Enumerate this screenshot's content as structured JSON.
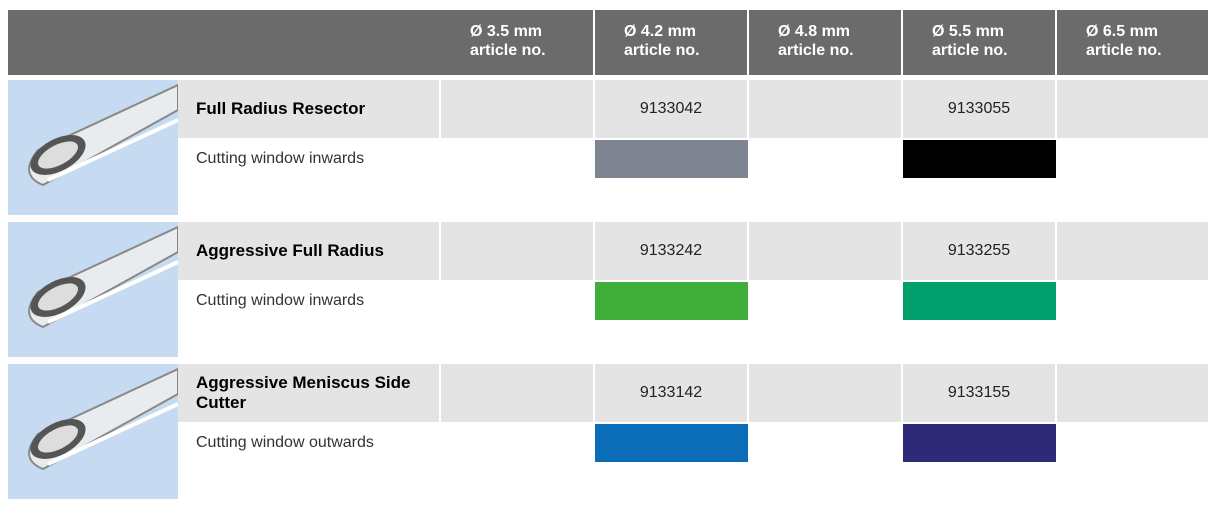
{
  "header": {
    "columns": [
      {
        "diameter": "Ø 3.5 mm",
        "label": "article no."
      },
      {
        "diameter": "Ø 4.2 mm",
        "label": "article no."
      },
      {
        "diameter": "Ø 4.8 mm",
        "label": "article no."
      },
      {
        "diameter": "Ø 5.5 mm",
        "label": "article no."
      },
      {
        "diameter": "Ø 6.5 mm",
        "label": "article no."
      }
    ]
  },
  "rows": [
    {
      "name": "Full Radius Resector",
      "description": "Cutting window inwards",
      "articles": [
        null,
        "9133042",
        null,
        "9133055",
        null
      ],
      "swatch_colors": [
        null,
        "#7e8590",
        null,
        "#000000",
        null
      ]
    },
    {
      "name": "Aggressive Full Radius",
      "description": "Cutting window inwards",
      "articles": [
        null,
        "9133242",
        null,
        "9133255",
        null
      ],
      "swatch_colors": [
        null,
        "#3fae3a",
        null,
        "#009e6b",
        null
      ]
    },
    {
      "name": "Aggressive Meniscus Side Cutter",
      "description": "Cutting window outwards",
      "articles": [
        null,
        "9133142",
        null,
        "9133155",
        null
      ],
      "swatch_colors": [
        null,
        "#0b6db7",
        null,
        "#2e2a78",
        null
      ]
    }
  ]
}
